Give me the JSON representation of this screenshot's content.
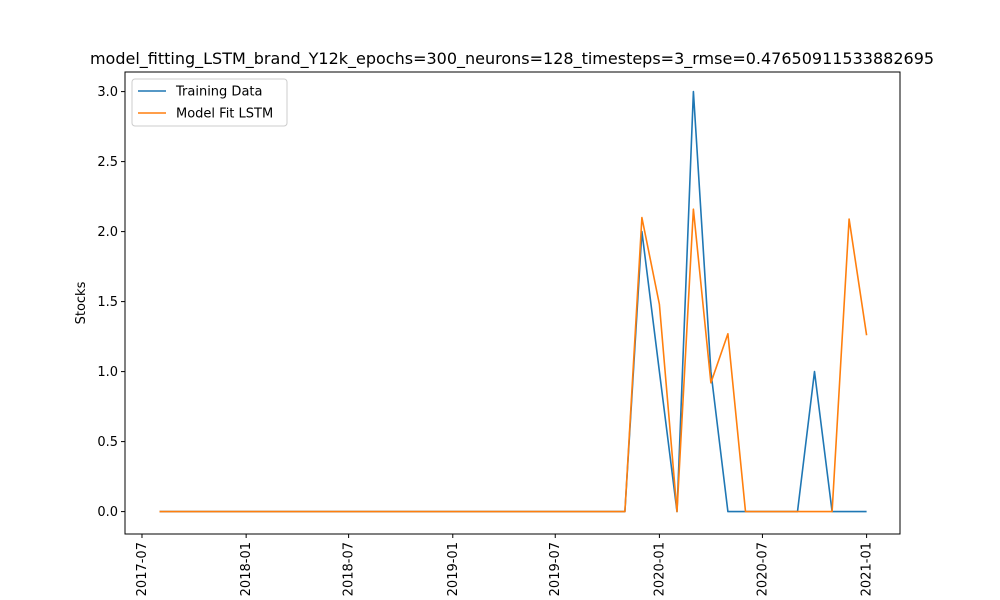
{
  "chart_data": {
    "type": "line",
    "title": "model_fitting_LSTM_brand_Y12k_epochs=300_neurons=128_timesteps=3_rmse=0.47650911533882695",
    "xlabel": "",
    "ylabel": "Stocks",
    "xlim": [
      "2017-06-01",
      "2021-03-01"
    ],
    "ylim": [
      -0.16,
      3.14
    ],
    "x_ticks": [
      "2017-07",
      "2018-01",
      "2018-07",
      "2019-01",
      "2019-07",
      "2020-01",
      "2020-07",
      "2021-01"
    ],
    "y_ticks": [
      "0.0",
      "0.5",
      "1.0",
      "1.5",
      "2.0",
      "2.5",
      "3.0"
    ],
    "grid": false,
    "legend_position": "top-left",
    "series": [
      {
        "name": "Training Data",
        "color": "#1f77b4",
        "x": [
          "2017-08-01",
          "2019-11-01",
          "2019-12-01",
          "2020-01-01",
          "2020-02-01",
          "2020-03-01",
          "2020-04-01",
          "2020-05-01",
          "2020-06-01",
          "2020-07-01",
          "2020-08-01",
          "2020-09-01",
          "2020-10-01",
          "2020-11-01",
          "2020-12-01",
          "2021-01-01"
        ],
        "y": [
          0,
          0,
          2.0,
          1.0,
          0,
          3.0,
          1.0,
          0,
          0,
          0,
          0,
          0,
          1.0,
          0,
          0,
          0
        ]
      },
      {
        "name": "Model Fit LSTM",
        "color": "#ff7f0e",
        "x": [
          "2017-08-01",
          "2019-11-01",
          "2019-12-01",
          "2020-01-01",
          "2020-02-01",
          "2020-03-01",
          "2020-04-01",
          "2020-05-01",
          "2020-06-01",
          "2020-07-01",
          "2020-08-01",
          "2020-09-01",
          "2020-10-01",
          "2020-11-01",
          "2020-12-01",
          "2021-01-01"
        ],
        "y": [
          0,
          0,
          2.1,
          1.48,
          0,
          2.16,
          0.92,
          1.27,
          0,
          0,
          0,
          0,
          0,
          0,
          2.09,
          1.26
        ]
      }
    ]
  }
}
